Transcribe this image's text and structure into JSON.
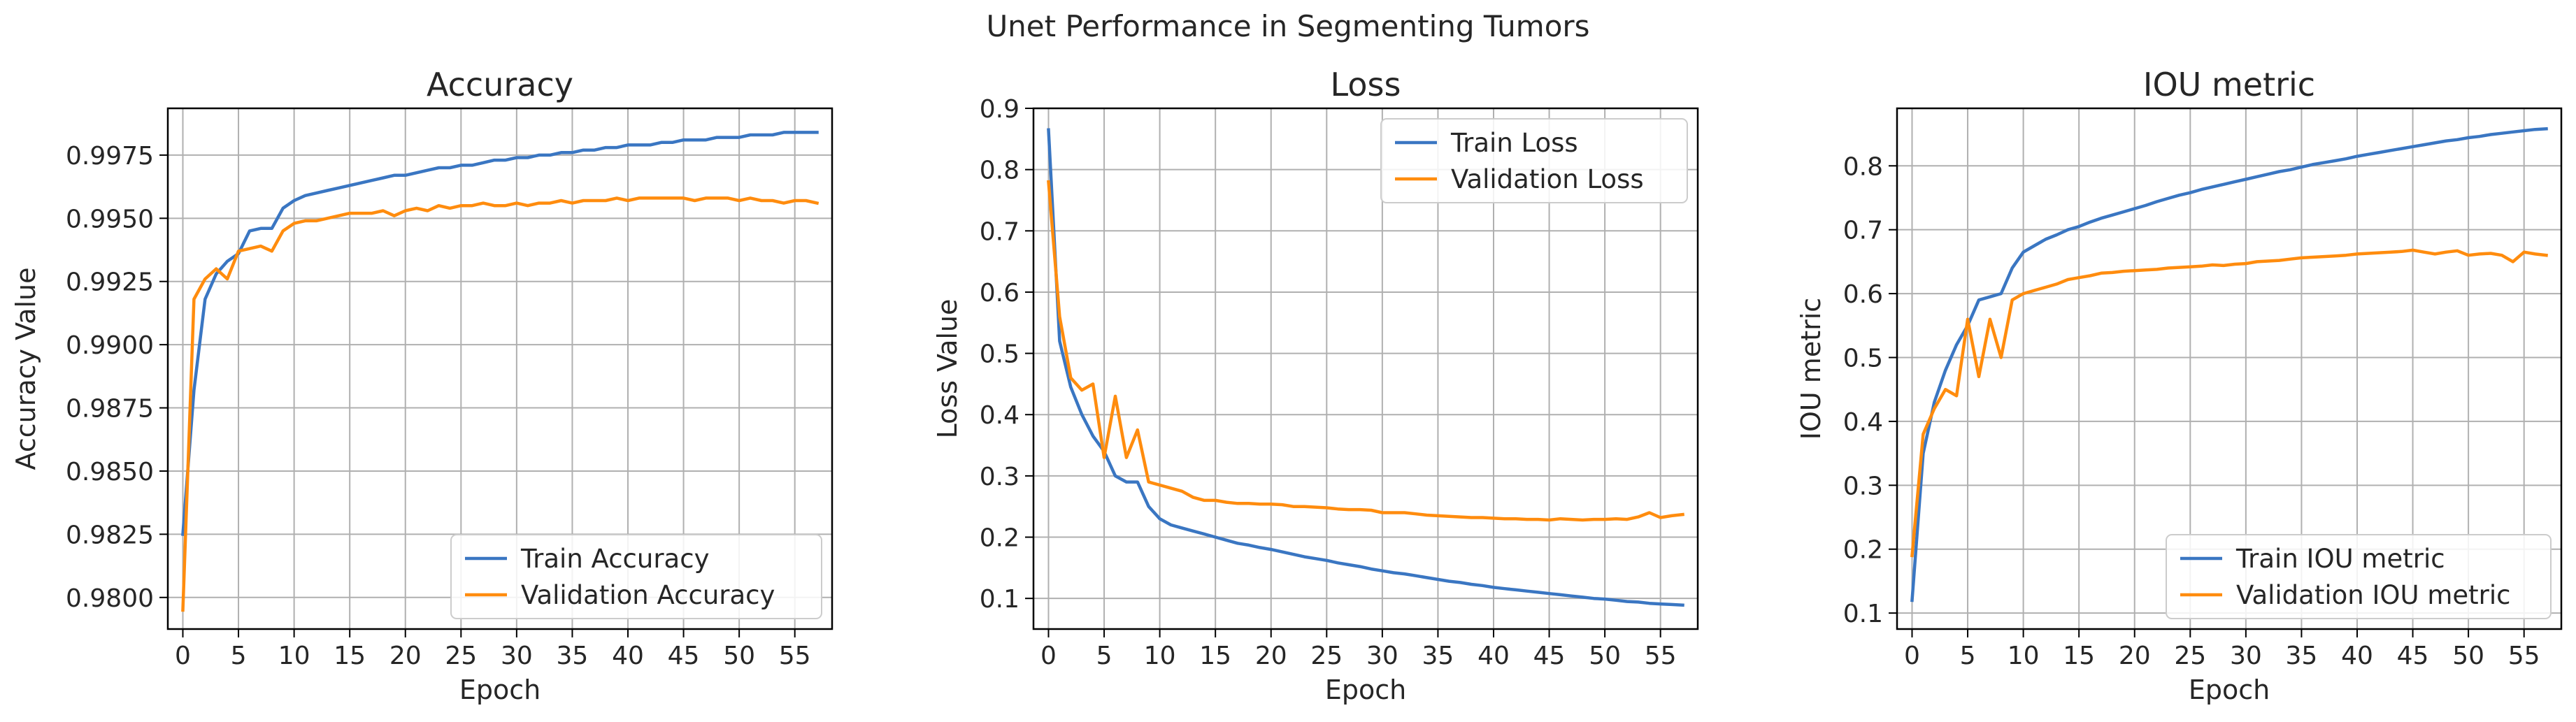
{
  "figure_title": "Unet Performance in Segmenting Tumors",
  "colors": {
    "train": "#3a76c2",
    "validation": "#ff8c0e",
    "grid": "#b0b0b0",
    "axis": "#000000"
  },
  "chart_data": [
    {
      "type": "line",
      "title": "Accuracy",
      "xlabel": "Epoch",
      "ylabel": "Accuracy Value",
      "xlim": [
        -1.35,
        58.35
      ],
      "ylim": [
        0.97875,
        0.99935
      ],
      "xticks": [
        0,
        5,
        10,
        15,
        20,
        25,
        30,
        35,
        40,
        45,
        50,
        55
      ],
      "yticks": [
        0.98,
        0.9825,
        0.985,
        0.9875,
        0.99,
        0.9925,
        0.995,
        0.9975
      ],
      "yticklabels": [
        "0.9800",
        "0.9825",
        "0.9850",
        "0.9875",
        "0.9900",
        "0.9925",
        "0.9950",
        "0.9975"
      ],
      "grid": true,
      "legend_position": "lower right",
      "series": [
        {
          "name": "Train Accuracy",
          "color": "#3a76c2",
          "values": [
            0.9825,
            0.9882,
            0.9918,
            0.9928,
            0.9933,
            0.9936,
            0.9945,
            0.9946,
            0.9946,
            0.9954,
            0.9957,
            0.9959,
            0.996,
            0.9961,
            0.9962,
            0.9963,
            0.9964,
            0.9965,
            0.9966,
            0.9967,
            0.9967,
            0.9968,
            0.9969,
            0.997,
            0.997,
            0.9971,
            0.9971,
            0.9972,
            0.9973,
            0.9973,
            0.9974,
            0.9974,
            0.9975,
            0.9975,
            0.9976,
            0.9976,
            0.9977,
            0.9977,
            0.9978,
            0.9978,
            0.9979,
            0.9979,
            0.9979,
            0.998,
            0.998,
            0.9981,
            0.9981,
            0.9981,
            0.9982,
            0.9982,
            0.9982,
            0.9983,
            0.9983,
            0.9983,
            0.9984,
            0.9984,
            0.9984,
            0.9984
          ]
        },
        {
          "name": "Validation Accuracy",
          "color": "#ff8c0e",
          "values": [
            0.9795,
            0.9918,
            0.9926,
            0.993,
            0.9926,
            0.9937,
            0.9938,
            0.9939,
            0.9937,
            0.9945,
            0.9948,
            0.9949,
            0.9949,
            0.995,
            0.9951,
            0.9952,
            0.9952,
            0.9952,
            0.9953,
            0.9951,
            0.9953,
            0.9954,
            0.9953,
            0.9955,
            0.9954,
            0.9955,
            0.9955,
            0.9956,
            0.9955,
            0.9955,
            0.9956,
            0.9955,
            0.9956,
            0.9956,
            0.9957,
            0.9956,
            0.9957,
            0.9957,
            0.9957,
            0.9958,
            0.9957,
            0.9958,
            0.9958,
            0.9958,
            0.9958,
            0.9958,
            0.9957,
            0.9958,
            0.9958,
            0.9958,
            0.9957,
            0.9958,
            0.9957,
            0.9957,
            0.9956,
            0.9957,
            0.9957,
            0.9956
          ]
        }
      ]
    },
    {
      "type": "line",
      "title": "Loss",
      "xlabel": "Epoch",
      "ylabel": "Loss Value",
      "xlim": [
        -1.35,
        58.35
      ],
      "ylim": [
        0.05,
        0.9
      ],
      "xticks": [
        0,
        5,
        10,
        15,
        20,
        25,
        30,
        35,
        40,
        45,
        50,
        55
      ],
      "yticks": [
        0.1,
        0.2,
        0.3,
        0.4,
        0.5,
        0.6,
        0.7,
        0.8,
        0.9
      ],
      "yticklabels": [
        "0.1",
        "0.2",
        "0.3",
        "0.4",
        "0.5",
        "0.6",
        "0.7",
        "0.8",
        "0.9"
      ],
      "grid": true,
      "legend_position": "upper right",
      "series": [
        {
          "name": "Train Loss",
          "color": "#3a76c2",
          "values": [
            0.865,
            0.52,
            0.445,
            0.4,
            0.365,
            0.34,
            0.3,
            0.29,
            0.29,
            0.25,
            0.23,
            0.22,
            0.215,
            0.21,
            0.205,
            0.2,
            0.195,
            0.19,
            0.187,
            0.183,
            0.18,
            0.176,
            0.172,
            0.168,
            0.165,
            0.162,
            0.158,
            0.155,
            0.152,
            0.148,
            0.145,
            0.142,
            0.14,
            0.137,
            0.134,
            0.131,
            0.128,
            0.126,
            0.123,
            0.121,
            0.118,
            0.116,
            0.114,
            0.112,
            0.11,
            0.108,
            0.106,
            0.104,
            0.102,
            0.1,
            0.099,
            0.097,
            0.095,
            0.094,
            0.092,
            0.091,
            0.09,
            0.089
          ]
        },
        {
          "name": "Validation Loss",
          "color": "#ff8c0e",
          "values": [
            0.78,
            0.56,
            0.46,
            0.44,
            0.45,
            0.33,
            0.43,
            0.33,
            0.375,
            0.29,
            0.285,
            0.28,
            0.275,
            0.265,
            0.26,
            0.26,
            0.257,
            0.255,
            0.255,
            0.254,
            0.254,
            0.253,
            0.25,
            0.25,
            0.249,
            0.248,
            0.246,
            0.245,
            0.245,
            0.244,
            0.24,
            0.24,
            0.24,
            0.238,
            0.236,
            0.235,
            0.234,
            0.233,
            0.232,
            0.232,
            0.231,
            0.23,
            0.23,
            0.229,
            0.229,
            0.228,
            0.23,
            0.229,
            0.228,
            0.229,
            0.229,
            0.23,
            0.229,
            0.233,
            0.24,
            0.232,
            0.235,
            0.237
          ]
        }
      ]
    },
    {
      "type": "line",
      "title": "IOU metric",
      "xlabel": "Epoch",
      "ylabel": "IOU metric",
      "xlim": [
        -1.35,
        58.35
      ],
      "ylim": [
        0.075,
        0.89
      ],
      "xticks": [
        0,
        5,
        10,
        15,
        20,
        25,
        30,
        35,
        40,
        45,
        50,
        55
      ],
      "yticks": [
        0.1,
        0.2,
        0.3,
        0.4,
        0.5,
        0.6,
        0.7,
        0.8
      ],
      "yticklabels": [
        "0.1",
        "0.2",
        "0.3",
        "0.4",
        "0.5",
        "0.6",
        "0.7",
        "0.8"
      ],
      "grid": true,
      "legend_position": "lower right",
      "series": [
        {
          "name": "Train IOU metric",
          "color": "#3a76c2",
          "values": [
            0.12,
            0.35,
            0.43,
            0.48,
            0.52,
            0.55,
            0.59,
            0.595,
            0.6,
            0.64,
            0.665,
            0.675,
            0.685,
            0.692,
            0.7,
            0.705,
            0.712,
            0.718,
            0.723,
            0.728,
            0.733,
            0.738,
            0.744,
            0.749,
            0.754,
            0.758,
            0.763,
            0.767,
            0.771,
            0.775,
            0.779,
            0.783,
            0.787,
            0.791,
            0.794,
            0.798,
            0.802,
            0.805,
            0.808,
            0.811,
            0.815,
            0.818,
            0.821,
            0.824,
            0.827,
            0.83,
            0.833,
            0.836,
            0.839,
            0.841,
            0.844,
            0.846,
            0.849,
            0.851,
            0.853,
            0.855,
            0.857,
            0.858
          ]
        },
        {
          "name": "Validation IOU metric",
          "color": "#ff8c0e",
          "values": [
            0.19,
            0.38,
            0.42,
            0.45,
            0.44,
            0.56,
            0.47,
            0.56,
            0.5,
            0.59,
            0.6,
            0.605,
            0.61,
            0.615,
            0.622,
            0.625,
            0.628,
            0.632,
            0.633,
            0.635,
            0.636,
            0.637,
            0.638,
            0.64,
            0.641,
            0.642,
            0.643,
            0.645,
            0.644,
            0.646,
            0.647,
            0.65,
            0.651,
            0.652,
            0.654,
            0.656,
            0.657,
            0.658,
            0.659,
            0.66,
            0.662,
            0.663,
            0.664,
            0.665,
            0.666,
            0.668,
            0.665,
            0.662,
            0.665,
            0.667,
            0.66,
            0.662,
            0.663,
            0.66,
            0.65,
            0.665,
            0.662,
            0.66
          ]
        }
      ]
    }
  ]
}
